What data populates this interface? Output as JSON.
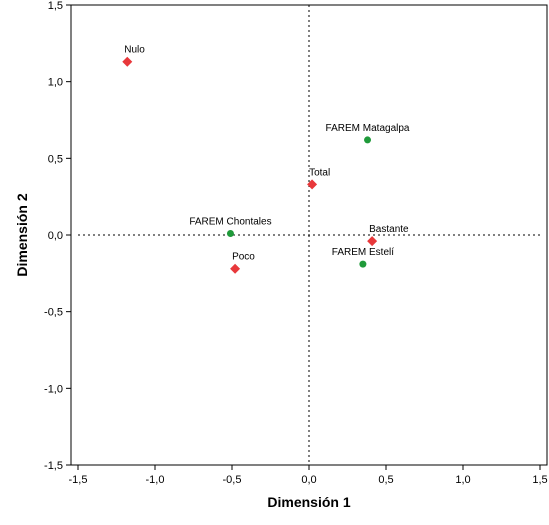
{
  "chart_data": {
    "type": "scatter",
    "xlabel": "Dimensión 1",
    "ylabel": "Dimensión 2",
    "xlim": [
      -1.5,
      1.5
    ],
    "ylim": [
      -1.5,
      1.5
    ],
    "xticks": [
      -1.5,
      -1.0,
      -0.5,
      0.0,
      0.5,
      1.0,
      1.5
    ],
    "yticks": [
      -1.5,
      -1.0,
      -0.5,
      0.0,
      0.5,
      1.0,
      1.5
    ],
    "xtick_labels": [
      "-1,5",
      "-1,0",
      "-0,5",
      "0,0",
      "0,5",
      "1,0",
      "1,5"
    ],
    "ytick_labels": [
      "-1,5",
      "-1,0",
      "-0,5",
      "0,0",
      "0,5",
      "1,0",
      "1,5"
    ],
    "reference_lines": {
      "x": 0,
      "y": 0,
      "style": "dotted"
    },
    "grid": false,
    "series": [
      {
        "marker": "diamond",
        "color": "#e8383b",
        "points": [
          {
            "label": "Nulo",
            "x": -1.18,
            "y": 1.13
          },
          {
            "label": "Total",
            "x": 0.02,
            "y": 0.33
          },
          {
            "label": "Bastante",
            "x": 0.41,
            "y": -0.04
          },
          {
            "label": "Poco",
            "x": -0.48,
            "y": -0.22
          }
        ]
      },
      {
        "marker": "circle",
        "color": "#1f9a3a",
        "points": [
          {
            "label": "FAREM Matagalpa",
            "x": 0.38,
            "y": 0.62
          },
          {
            "label": "FAREM Chontales",
            "x": -0.51,
            "y": 0.01
          },
          {
            "label": "FAREM Estelí",
            "x": 0.35,
            "y": -0.19
          }
        ]
      }
    ]
  }
}
